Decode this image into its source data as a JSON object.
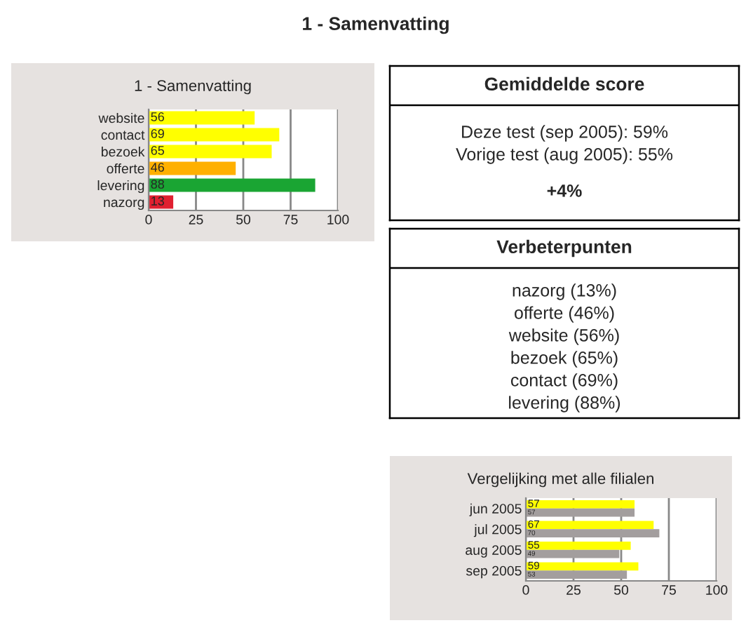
{
  "chart_data": [
    {
      "type": "other",
      "title": "1 - Samenvatting"
    },
    {
      "type": "bar",
      "orientation": "horizontal",
      "title": "1 - Samenvatting",
      "categories": [
        "website",
        "contact",
        "bezoek",
        "offerte",
        "levering",
        "nazorg"
      ],
      "series": [
        {
          "values": [
            56,
            69,
            65,
            46,
            88,
            13
          ],
          "colors": [
            "#ffff00",
            "#ffff00",
            "#ffff00",
            "#ffb000",
            "#1aa533",
            "#e02030"
          ]
        }
      ],
      "xlim": [
        0,
        100
      ],
      "xticks": [
        0,
        25,
        50,
        75,
        100
      ],
      "grid": "x",
      "data_labels": true,
      "legend": false
    },
    {
      "type": "other",
      "title": "Gemiddelde score",
      "annotations": [
        "Deze test (sep 2005): 59%",
        "Vorige test (aug 2005): 55%",
        "+4%"
      ]
    },
    {
      "type": "other",
      "title": "Verbeterpunten",
      "annotations": [
        "nazorg (13%)",
        "offerte (46%)",
        "website (56%)",
        "bezoek (65%)",
        "contact (69%)",
        "levering (88%)"
      ]
    },
    {
      "type": "bar",
      "orientation": "horizontal",
      "title": "Vergelijking met alle filialen",
      "categories": [
        "jun 2005",
        "jul 2005",
        "aug 2005",
        "sep 2005"
      ],
      "series": [
        {
          "color": "#ffff00",
          "values": [
            57,
            67,
            55,
            59
          ]
        },
        {
          "color": "#a39e9e",
          "values": [
            57,
            70,
            49,
            53
          ]
        }
      ],
      "xlim": [
        0,
        100
      ],
      "xticks": [
        0,
        25,
        50,
        75,
        100
      ],
      "grid": "x",
      "data_labels": true,
      "legend": false
    }
  ]
}
